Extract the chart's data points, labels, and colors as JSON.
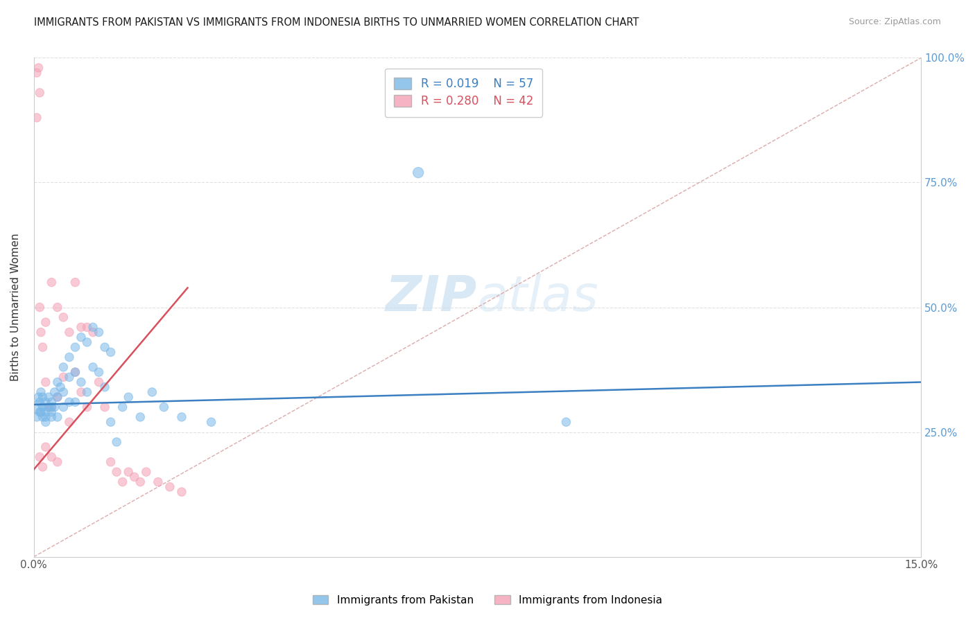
{
  "title": "IMMIGRANTS FROM PAKISTAN VS IMMIGRANTS FROM INDONESIA BIRTHS TO UNMARRIED WOMEN CORRELATION CHART",
  "source": "Source: ZipAtlas.com",
  "ylabel": "Births to Unmarried Women",
  "xlim": [
    0.0,
    0.15
  ],
  "ylim": [
    0.0,
    1.0
  ],
  "xtick_positions": [
    0.0,
    0.03,
    0.06,
    0.09,
    0.12,
    0.15
  ],
  "xtick_labels": [
    "0.0%",
    "",
    "",
    "",
    "",
    "15.0%"
  ],
  "ytick_positions": [
    0.0,
    0.25,
    0.5,
    0.75,
    1.0
  ],
  "ytick_labels_right": [
    "",
    "25.0%",
    "50.0%",
    "75.0%",
    "100.0%"
  ],
  "legend_blue_r": "R = 0.019",
  "legend_blue_n": "N = 57",
  "legend_pink_r": "R = 0.280",
  "legend_pink_n": "N = 42",
  "blue_color": "#7ab8e8",
  "pink_color": "#f4a0b5",
  "trendline_blue_color": "#3a7fc1",
  "trendline_pink_color": "#d94f5c",
  "diagonal_color": "#ddaaaa",
  "watermark_zip": "ZIP",
  "watermark_atlas": "atlas",
  "pakistan_x": [
    0.0005,
    0.0005,
    0.0008,
    0.001,
    0.001,
    0.0012,
    0.0012,
    0.0015,
    0.0015,
    0.0015,
    0.002,
    0.002,
    0.002,
    0.002,
    0.0025,
    0.0025,
    0.003,
    0.003,
    0.003,
    0.003,
    0.0035,
    0.0035,
    0.004,
    0.004,
    0.004,
    0.0045,
    0.005,
    0.005,
    0.005,
    0.006,
    0.006,
    0.006,
    0.007,
    0.007,
    0.007,
    0.008,
    0.008,
    0.009,
    0.009,
    0.01,
    0.01,
    0.011,
    0.011,
    0.012,
    0.012,
    0.013,
    0.013,
    0.014,
    0.015,
    0.016,
    0.018,
    0.02,
    0.022,
    0.025,
    0.03,
    0.065,
    0.09
  ],
  "pakistan_y": [
    0.3,
    0.28,
    0.32,
    0.31,
    0.29,
    0.33,
    0.29,
    0.32,
    0.3,
    0.28,
    0.31,
    0.29,
    0.28,
    0.27,
    0.3,
    0.32,
    0.29,
    0.31,
    0.3,
    0.28,
    0.33,
    0.3,
    0.35,
    0.32,
    0.28,
    0.34,
    0.38,
    0.33,
    0.3,
    0.4,
    0.36,
    0.31,
    0.42,
    0.37,
    0.31,
    0.44,
    0.35,
    0.43,
    0.33,
    0.46,
    0.38,
    0.45,
    0.37,
    0.42,
    0.34,
    0.41,
    0.27,
    0.23,
    0.3,
    0.32,
    0.28,
    0.33,
    0.3,
    0.28,
    0.27,
    0.77,
    0.27
  ],
  "pakistan_size": [
    180,
    80,
    80,
    80,
    80,
    80,
    80,
    80,
    80,
    80,
    80,
    80,
    80,
    80,
    80,
    80,
    80,
    80,
    80,
    80,
    80,
    80,
    80,
    80,
    80,
    80,
    80,
    80,
    80,
    80,
    80,
    80,
    80,
    80,
    80,
    80,
    80,
    80,
    80,
    80,
    80,
    80,
    80,
    80,
    80,
    80,
    80,
    80,
    80,
    80,
    80,
    80,
    80,
    80,
    80,
    120,
    80
  ],
  "indonesia_x": [
    0.0005,
    0.0005,
    0.0008,
    0.001,
    0.001,
    0.001,
    0.0012,
    0.0015,
    0.0015,
    0.002,
    0.002,
    0.002,
    0.0025,
    0.003,
    0.003,
    0.003,
    0.004,
    0.004,
    0.004,
    0.005,
    0.005,
    0.006,
    0.006,
    0.007,
    0.007,
    0.008,
    0.008,
    0.009,
    0.009,
    0.01,
    0.011,
    0.012,
    0.013,
    0.014,
    0.015,
    0.016,
    0.017,
    0.018,
    0.019,
    0.021,
    0.023,
    0.025
  ],
  "indonesia_y": [
    0.97,
    0.88,
    0.98,
    0.93,
    0.5,
    0.2,
    0.45,
    0.42,
    0.18,
    0.47,
    0.35,
    0.22,
    0.3,
    0.55,
    0.3,
    0.2,
    0.5,
    0.32,
    0.19,
    0.48,
    0.36,
    0.45,
    0.27,
    0.55,
    0.37,
    0.46,
    0.33,
    0.46,
    0.3,
    0.45,
    0.35,
    0.3,
    0.19,
    0.17,
    0.15,
    0.17,
    0.16,
    0.15,
    0.17,
    0.15,
    0.14,
    0.13
  ],
  "indonesia_size": [
    80,
    80,
    80,
    80,
    80,
    80,
    80,
    80,
    80,
    80,
    80,
    80,
    80,
    80,
    80,
    80,
    80,
    80,
    80,
    80,
    80,
    80,
    80,
    80,
    80,
    80,
    80,
    80,
    80,
    80,
    80,
    80,
    80,
    80,
    80,
    80,
    80,
    80,
    80,
    80,
    80,
    80
  ]
}
